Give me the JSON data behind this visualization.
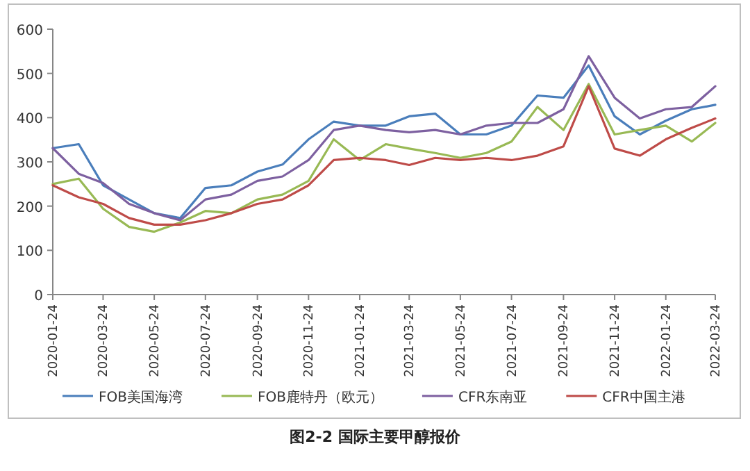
{
  "chart_data": {
    "type": "line",
    "title": "图2-2 国际主要甲醇报价",
    "x": [
      "2020-01-24",
      "2020-02-24",
      "2020-03-24",
      "2020-04-24",
      "2020-05-24",
      "2020-06-24",
      "2020-07-24",
      "2020-08-24",
      "2020-09-24",
      "2020-10-24",
      "2020-11-24",
      "2020-12-24",
      "2021-01-24",
      "2021-02-24",
      "2021-03-24",
      "2021-04-24",
      "2021-05-24",
      "2021-06-24",
      "2021-07-24",
      "2021-08-24",
      "2021-09-24",
      "2021-10-24",
      "2021-11-24",
      "2021-12-24",
      "2022-01-24",
      "2022-02-24",
      "2022-03-24"
    ],
    "series": [
      {
        "name": "FOB美国海湾",
        "color": "#4a7ebb",
        "values": [
          331,
          340,
          247,
          215,
          184,
          173,
          241,
          247,
          278,
          294,
          351,
          391,
          382,
          382,
          403,
          409,
          362,
          362,
          382,
          450,
          445,
          518,
          403,
          362,
          393,
          419,
          429
        ]
      },
      {
        "name": "FOB鹿特丹（欧元）",
        "color": "#98b954",
        "values": [
          250,
          262,
          194,
          153,
          142,
          163,
          189,
          184,
          215,
          226,
          257,
          351,
          304,
          340,
          330,
          320,
          309,
          320,
          346,
          424,
          372,
          476,
          362,
          372,
          382,
          346,
          388
        ]
      },
      {
        "name": "CFR东南亚",
        "color": "#7d60a0",
        "values": [
          331,
          273,
          252,
          205,
          184,
          168,
          215,
          226,
          257,
          267,
          304,
          372,
          382,
          372,
          367,
          372,
          362,
          382,
          388,
          388,
          419,
          539,
          445,
          398,
          419,
          424,
          471
        ]
      },
      {
        "name": "CFR中国主港",
        "color": "#be4b48",
        "values": [
          247,
          220,
          205,
          173,
          158,
          158,
          168,
          184,
          205,
          215,
          247,
          304,
          309,
          304,
          293,
          309,
          304,
          309,
          304,
          314,
          335,
          471,
          330,
          314,
          351,
          377,
          398
        ]
      }
    ],
    "xlim": [
      "2020-01-24",
      "2022-03-24"
    ],
    "xticks": [
      "2020-01-24",
      "2020-03-24",
      "2020-05-24",
      "2020-07-24",
      "2020-09-24",
      "2020-11-24",
      "2021-01-24",
      "2021-03-24",
      "2021-05-24",
      "2021-07-24",
      "2021-09-24",
      "2021-11-24",
      "2022-01-24",
      "2022-03-24"
    ],
    "ylim": [
      0,
      600
    ],
    "yticks": [
      0,
      100,
      200,
      300,
      400,
      500,
      600
    ],
    "legend": "bottom",
    "grid": false,
    "marker": "none",
    "line_style": "solid"
  }
}
